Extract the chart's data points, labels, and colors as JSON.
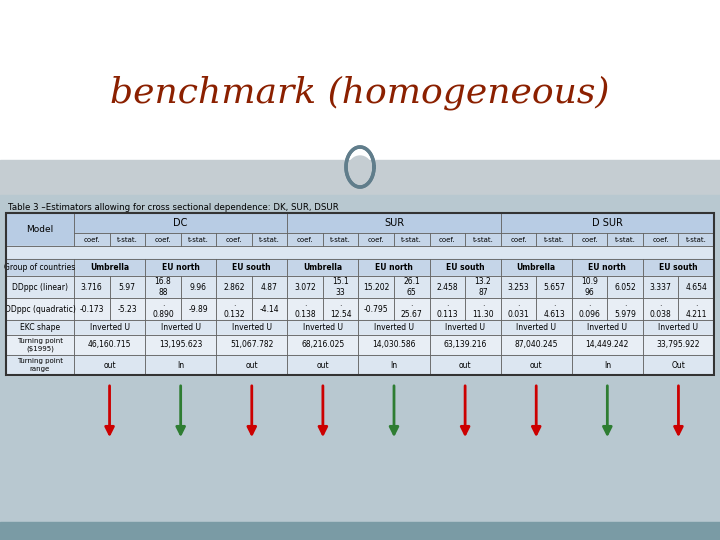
{
  "title": "benchmark (homogeneous)",
  "subtitle": "Table 3 –Estimators allowing for cross sectional dependence: DK, SUR, DSUR",
  "title_color": "#8B2000",
  "bg_top": "#ffffff",
  "bg_mid": "#b0bec5",
  "bg_bottom": "#8fa8b0",
  "header_bg": "#b8cce4",
  "subheader_bg": "#c5d5e8",
  "row_bg_light": "#dce6f1",
  "row_bg_white": "#e8eef5",
  "border_color": "#555555",
  "teal_circle_color": "#607d8b",
  "col_groups": [
    "DC",
    "SUR",
    "D SUR"
  ],
  "col_headers": [
    "coef.",
    "t-stat.",
    "coef.",
    "t-stat.",
    "coef.",
    "t-stat.",
    "coef.",
    "t-stat.",
    "coef.",
    "t-stat.",
    "coef.",
    "t-stat.",
    "coef.",
    "t-stat.",
    "coef.",
    "t-stat.",
    "coef.",
    "t-stat."
  ],
  "sub_groups": [
    "Umbrella",
    "EU north",
    "EU south",
    "Umbrella",
    "EU north",
    "EU south",
    "Umbrella",
    "EU north",
    "EU south"
  ],
  "data_rows": [
    {
      "label": "DDppc (linear)",
      "vals": [
        "3.716",
        "5.97",
        "16.8\n88",
        "9.96",
        "2.862",
        "4.87",
        "3.072",
        "15.1\n33",
        "15.202",
        "26.1\n65",
        "2.458",
        "13.2\n87",
        "3.253",
        "5.657",
        "10.9\n96",
        "6.052",
        "3.337",
        "4.654"
      ]
    },
    {
      "label": "DDppc (quadratic)",
      "vals": [
        "-0.173",
        "-5.23",
        ".\n0.890",
        "-9.89",
        ".\n0.132",
        "-4.14",
        ".\n0.138",
        ".\n12.54",
        "-0.795",
        ".\n25.67",
        ".\n0.113",
        ".\n11.30",
        ".\n0.031",
        ".\n4.613",
        ".\n0.096",
        ".\n5.979",
        ".\n0.038",
        ".\n4.211"
      ]
    }
  ],
  "ekc_row": "Inverted U",
  "tp_vals": [
    "46,160.715",
    "13,195.623",
    "51,067.782",
    "68,216.025",
    "14,030.586",
    "63,139.216",
    "87,040.245",
    "14,449.242",
    "33,795.922"
  ],
  "tpr_vals": [
    "out",
    "In",
    "out",
    "out",
    "In",
    "out",
    "out",
    "In",
    "Out"
  ],
  "arrow_red": "#cc0000",
  "arrow_green": "#2e7d32"
}
